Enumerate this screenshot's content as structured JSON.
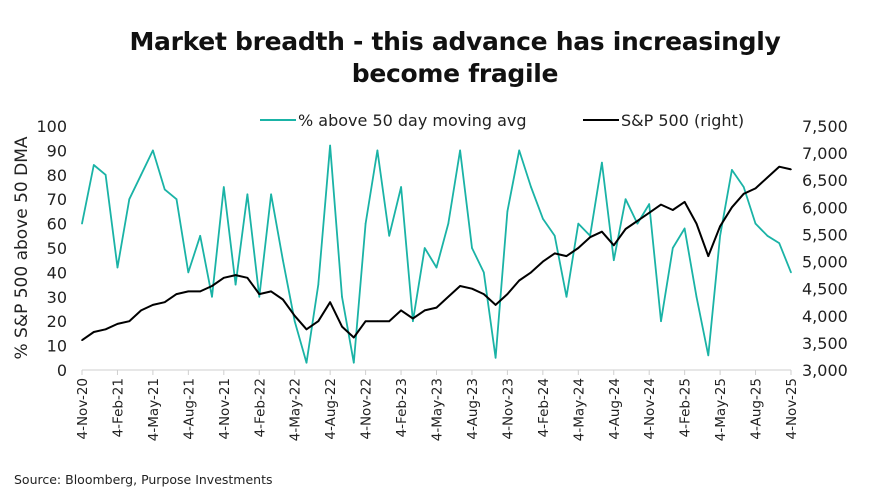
{
  "title_line1": "Market breadth - this advance has increasingly",
  "title_line2": "become fragile",
  "source": "Source: Bloomberg, Purpose Investments",
  "chart_data": {
    "type": "line",
    "title": "Market breadth - this advance has increasingly become fragile",
    "ylabel": "% S&P 500 above 50 DMA",
    "ylim": [
      0,
      100
    ],
    "y2lim": [
      3000,
      7500
    ],
    "grid": false,
    "legend_position": "top",
    "yticks": [
      "0",
      "10",
      "20",
      "30",
      "40",
      "50",
      "60",
      "70",
      "80",
      "90",
      "100"
    ],
    "y2ticks": [
      "3,000",
      "3,500",
      "4,000",
      "4,500",
      "5,000",
      "5,500",
      "6,000",
      "6,500",
      "7,000",
      "7,500"
    ],
    "xticks": [
      "4-Nov-20",
      "4-Feb-21",
      "4-May-21",
      "4-Aug-21",
      "4-Nov-21",
      "4-Feb-22",
      "4-May-22",
      "4-Aug-22",
      "4-Nov-22",
      "4-Feb-23",
      "4-May-23",
      "4-Aug-23",
      "4-Nov-23",
      "4-Feb-24",
      "4-May-24",
      "4-Aug-24",
      "4-Nov-24",
      "4-Feb-25",
      "4-May-25",
      "4-Aug-25",
      "4-Nov-25"
    ],
    "x_start": "2020-11",
    "x_step": "monthly",
    "series": [
      {
        "name": "% above 50 day moving avg",
        "axis": "left",
        "color": "#1ab3a6",
        "values": [
          60,
          84,
          80,
          42,
          70,
          80,
          90,
          74,
          70,
          40,
          55,
          30,
          75,
          35,
          72,
          30,
          72,
          45,
          20,
          3,
          35,
          92,
          30,
          3,
          60,
          90,
          55,
          75,
          20,
          50,
          42,
          60,
          90,
          50,
          40,
          5,
          65,
          90,
          75,
          62,
          55,
          30,
          60,
          55,
          85,
          45,
          70,
          60,
          68,
          20,
          50,
          58,
          30,
          6,
          55,
          82,
          75,
          60,
          55,
          52,
          40
        ]
      },
      {
        "name": "S&P 500 (right)",
        "axis": "right",
        "color": "#000000",
        "values": [
          3550,
          3700,
          3750,
          3850,
          3900,
          4100,
          4200,
          4250,
          4400,
          4450,
          4450,
          4550,
          4700,
          4750,
          4700,
          4400,
          4450,
          4300,
          4000,
          3750,
          3900,
          4250,
          3800,
          3600,
          3900,
          3900,
          3900,
          4100,
          3950,
          4100,
          4150,
          4350,
          4550,
          4500,
          4400,
          4200,
          4400,
          4650,
          4800,
          5000,
          5150,
          5100,
          5250,
          5450,
          5550,
          5300,
          5600,
          5750,
          5900,
          6050,
          5950,
          6100,
          5700,
          5100,
          5650,
          6000,
          6250,
          6350,
          6550,
          6750,
          6700
        ]
      }
    ]
  }
}
